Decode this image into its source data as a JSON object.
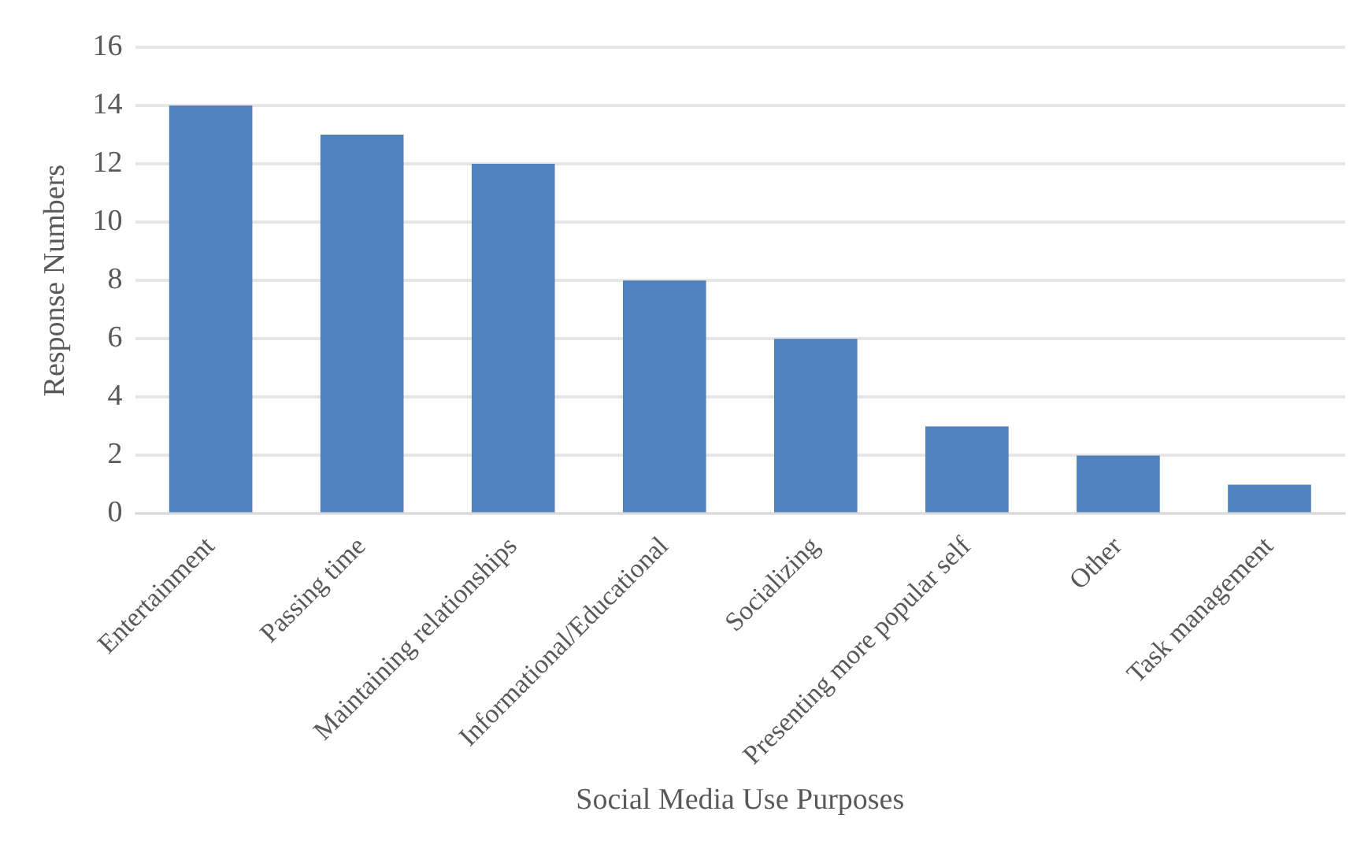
{
  "chart_data": {
    "type": "bar",
    "xlabel": "Social Media Use Purposes",
    "ylabel": "Response Numbers",
    "categories": [
      "Entertainment",
      "Passing time",
      "Maintaining relationships",
      "Informational/Educational",
      "Socializing",
      "Presenting more popular self",
      "Other",
      "Task management"
    ],
    "values": [
      14,
      13,
      12,
      8,
      6,
      3,
      2,
      1
    ],
    "color": "#4f81bd",
    "ylim": [
      0,
      16
    ],
    "yticks": [
      0,
      2,
      4,
      6,
      8,
      10,
      12,
      14,
      16
    ],
    "grid": "y"
  }
}
